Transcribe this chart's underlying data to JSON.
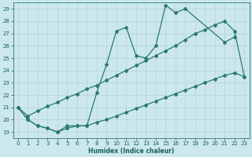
{
  "xlabel": "Humidex (Indice chaleur)",
  "xlim": [
    -0.5,
    23.5
  ],
  "ylim": [
    18.5,
    29.5
  ],
  "xticks": [
    0,
    1,
    2,
    3,
    4,
    5,
    6,
    7,
    8,
    9,
    10,
    11,
    12,
    13,
    14,
    15,
    16,
    17,
    18,
    19,
    20,
    21,
    22,
    23
  ],
  "yticks": [
    19,
    20,
    21,
    22,
    23,
    24,
    25,
    26,
    27,
    28,
    29
  ],
  "bg_color": "#cce8ec",
  "line_color": "#2a7a6e",
  "grid_color": "#aed4d8",
  "jagged_x": [
    0,
    1,
    2,
    3,
    4,
    5,
    6,
    7,
    8,
    9,
    10,
    11,
    12,
    13,
    14,
    15,
    16,
    17,
    21,
    22
  ],
  "jagged_y": [
    21.0,
    20.0,
    19.5,
    19.3,
    19.0,
    19.5,
    19.5,
    19.5,
    22.2,
    24.5,
    27.2,
    27.5,
    25.2,
    25.0,
    26.0,
    29.3,
    28.7,
    29.0,
    26.3,
    26.7
  ],
  "upper_x": [
    0,
    1,
    2,
    3,
    4,
    5,
    6,
    7,
    8,
    9,
    10,
    11,
    12,
    13,
    14,
    15,
    16,
    17,
    18,
    19,
    20,
    21,
    22,
    23
  ],
  "upper_y": [
    21.0,
    20.3,
    20.7,
    21.1,
    21.4,
    21.8,
    22.1,
    22.5,
    22.8,
    23.2,
    23.6,
    24.0,
    24.4,
    24.8,
    25.2,
    25.6,
    26.0,
    26.5,
    27.0,
    27.3,
    27.7,
    28.0,
    27.2,
    23.5
  ],
  "lower_x": [
    0,
    1,
    2,
    3,
    4,
    5,
    6,
    7,
    8,
    9,
    10,
    11,
    12,
    13,
    14,
    15,
    16,
    17,
    18,
    19,
    20,
    21,
    22,
    23
  ],
  "lower_y": [
    21.0,
    20.0,
    19.5,
    19.3,
    19.0,
    19.3,
    19.5,
    19.5,
    19.8,
    20.0,
    20.3,
    20.6,
    20.9,
    21.2,
    21.5,
    21.8,
    22.1,
    22.4,
    22.7,
    23.0,
    23.3,
    23.6,
    23.8,
    23.5
  ]
}
